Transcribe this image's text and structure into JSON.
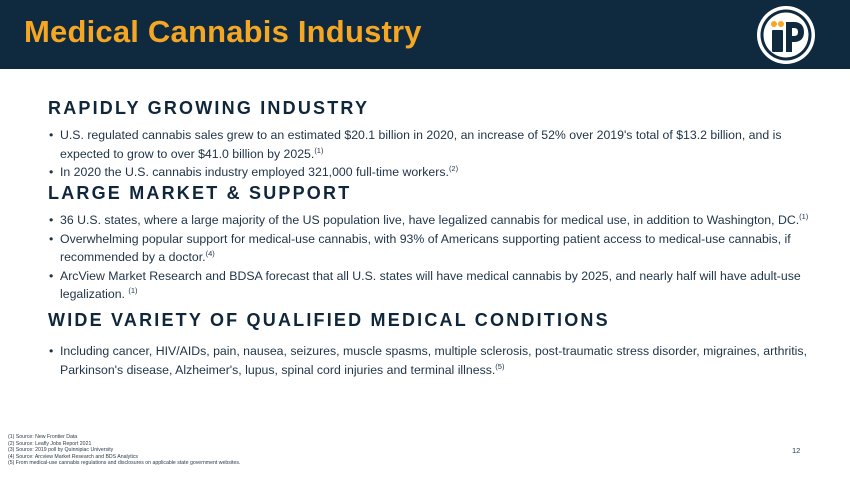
{
  "header": {
    "title": "Medical Cannabis Industry",
    "logo_text": "iP",
    "colors": {
      "background": "#0f2a3f",
      "title": "#f5a623",
      "logo_accent": "#f5a623"
    }
  },
  "sections": [
    {
      "title": "RAPIDLY GROWING INDUSTRY",
      "bullets": [
        {
          "text": "U.S. regulated cannabis sales grew to an estimated $20.1 billion in 2020, an increase of 52% over 2019's total of $13.2 billion, and is expected to grow to over $41.0 billion by 2025.",
          "ref": "(1)"
        },
        {
          "text": "In 2020 the U.S. cannabis industry employed 321,000 full-time workers.",
          "ref": "(2)"
        }
      ]
    },
    {
      "title": "LARGE MARKET & SUPPORT",
      "bullets": [
        {
          "text": "36 U.S. states, where a large majority of the US population live, have legalized cannabis for medical use, in addition to Washington, DC.",
          "ref": "(1)"
        },
        {
          "text": "Overwhelming popular support for medical-use cannabis, with 93% of Americans supporting patient access to medical-use cannabis, if recommended by a doctor.",
          "ref": "(4)"
        },
        {
          "text": "ArcView Market Research and BDSA forecast that all U.S. states will have medical cannabis by 2025, and nearly half will have adult-use legalization. ",
          "ref": "(1)"
        }
      ]
    },
    {
      "title": "WIDE VARIETY OF QUALIFIED MEDICAL CONDITIONS",
      "bullets": [
        {
          "text": "Including cancer, HIV/AIDs, pain, nausea, seizures, muscle spasms, multiple sclerosis, post-traumatic stress disorder, migraines, arthritis, Parkinson's disease, Alzheimer's, lupus, spinal cord injuries and terminal illness.",
          "ref": "(5)"
        }
      ]
    }
  ],
  "bullet_char": "•",
  "footnotes": [
    "(1) Source: New Frontier Data",
    "(2) Source: Leafly Jobs Report 2021",
    "(3) Source: 2019 poll by Quinnipiac University",
    "(4) Source: Arcview Market Research and BDS Analytics",
    "(5) From medical-use cannabis regulations and disclosures on applicable state government websites."
  ],
  "page_number": "12"
}
